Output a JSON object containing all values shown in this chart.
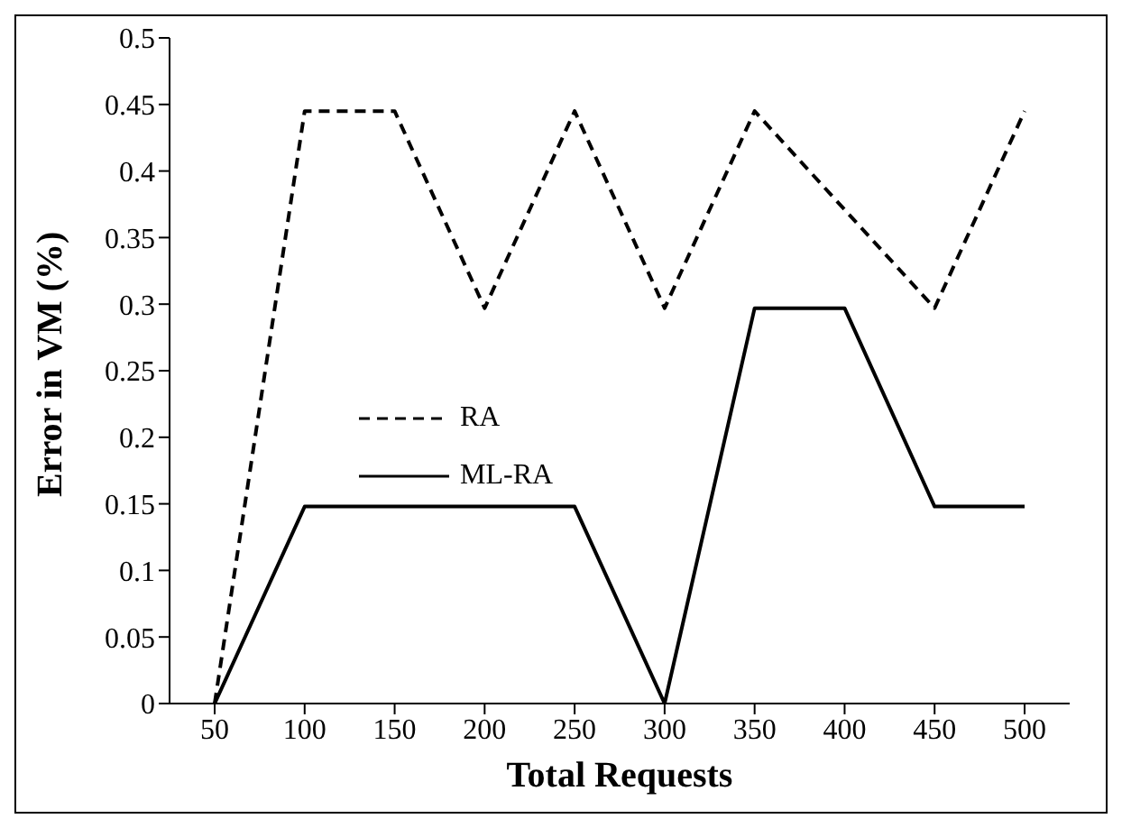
{
  "chart_data": {
    "type": "line",
    "xlabel": "Total Requests",
    "ylabel": "Error in VM (%)",
    "categories": [
      "50",
      "100",
      "150",
      "200",
      "250",
      "300",
      "350",
      "400",
      "450",
      "500"
    ],
    "series": [
      {
        "name": "RA",
        "color": "#000000",
        "line_style": "dashed",
        "values": [
          0,
          0.445,
          0.445,
          0.297,
          0.445,
          0.297,
          0.445,
          0.371,
          0.297,
          0.445
        ]
      },
      {
        "name": "ML-RA",
        "color": "#000000",
        "line_style": "solid",
        "values": [
          0,
          0.148,
          0.148,
          0.148,
          0.148,
          0,
          0.297,
          0.297,
          0.148,
          0.148
        ]
      }
    ],
    "ylim": [
      0,
      0.5
    ],
    "yticks": [
      0,
      0.05,
      0.1,
      0.15,
      0.2,
      0.25,
      0.3,
      0.35,
      0.4,
      0.45,
      0.5
    ],
    "grid": false,
    "legend": "center",
    "marker": "none"
  }
}
